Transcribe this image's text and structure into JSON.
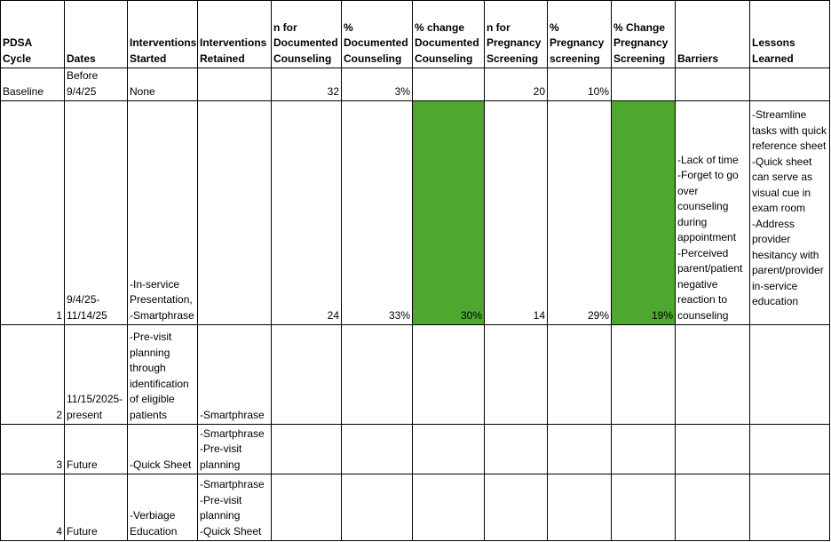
{
  "headers": [
    "PDSA Cycle",
    "Dates",
    "Interventions Started",
    "Interventions Retained",
    "n for Documented Counseling",
    "% Documented Counseling",
    "% change Documented Counseling",
    "n for Pregnancy Screening",
    "% Pregnancy screening",
    "% Change Pregnancy Screening",
    "Barriers",
    "Lessons Learned"
  ],
  "rows": [
    {
      "cycle": "Baseline",
      "dates": "Before\n9/4/25",
      "started": "None",
      "retained": "",
      "n_counsel": "32",
      "pct_counsel": "3%",
      "chg_counsel": "",
      "n_preg": "20",
      "pct_preg": "10%",
      "chg_preg": "",
      "barriers": "",
      "lessons": ""
    },
    {
      "cycle": "1",
      "dates": "9/4/25-\n11/14/25",
      "started": "-In-service\nPresentation,\n-Smartphrase",
      "retained": "",
      "n_counsel": "24",
      "pct_counsel": "33%",
      "chg_counsel": "30%",
      "n_preg": "14",
      "pct_preg": "29%",
      "chg_preg": "19%",
      "barriers": "-Lack of time\n-Forget to go\nover\ncounseling\nduring\nappointment\n-Perceived\nparent/patient\nnegative\nreaction to\ncounseling",
      "lessons": "-Streamline\ntasks with quick\nreference sheet\n-Quick sheet\ncan serve as\nvisual cue in\nexam room\n-Address\nprovider\nhesitancy with\nparent/provider\nin-service\neducation"
    },
    {
      "cycle": "2",
      "dates": "11/15/2025-\npresent",
      "started": "-Pre-visit\nplanning\nthrough\nidentification\nof eligible\npatients",
      "retained": "-Smartphrase",
      "n_counsel": "",
      "pct_counsel": "",
      "chg_counsel": "",
      "n_preg": "",
      "pct_preg": "",
      "chg_preg": "",
      "barriers": "",
      "lessons": ""
    },
    {
      "cycle": "3",
      "dates": "Future",
      "started": "-Quick Sheet",
      "retained": "-Smartphrase\n-Pre-visit\nplanning",
      "n_counsel": "",
      "pct_counsel": "",
      "chg_counsel": "",
      "n_preg": "",
      "pct_preg": "",
      "chg_preg": "",
      "barriers": "",
      "lessons": ""
    },
    {
      "cycle": "4",
      "dates": "Future",
      "started": "-Verbiage\nEducation",
      "retained": "-Smartphrase\n-Pre-visit\nplanning\n-Quick Sheet",
      "n_counsel": "",
      "pct_counsel": "",
      "chg_counsel": "",
      "n_preg": "",
      "pct_preg": "",
      "chg_preg": "",
      "barriers": "",
      "lessons": ""
    }
  ],
  "colors": {
    "highlight": "#4ea72e",
    "border": "#000000"
  }
}
